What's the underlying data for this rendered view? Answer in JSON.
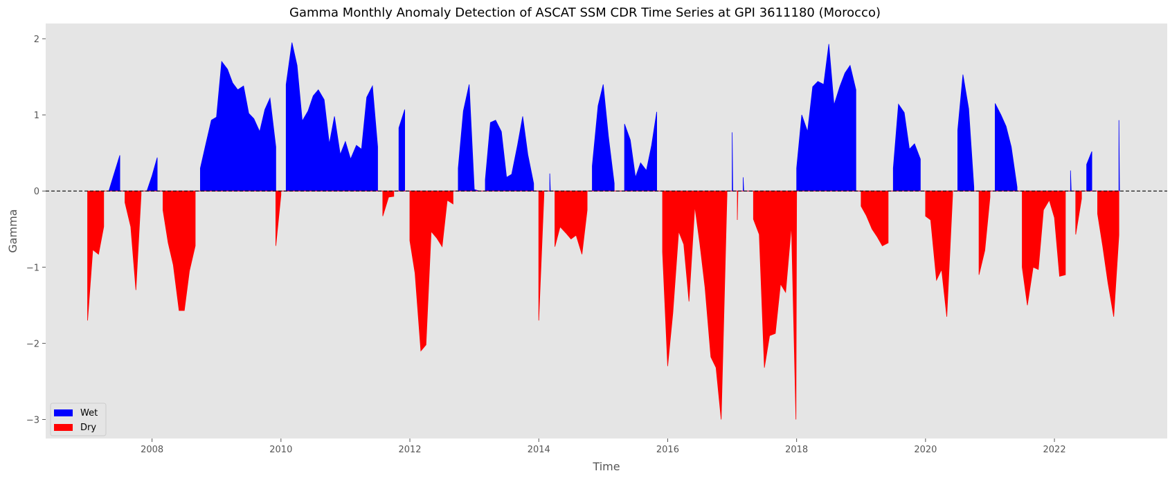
{
  "chart_data": {
    "type": "area",
    "title": "Gamma Monthly Anomaly Detection of ASCAT SSM CDR Time Series at GPI 3611180 (Morocco)",
    "xlabel": "Time",
    "ylabel": "Gamma",
    "xlim": [
      2006.35,
      2023.75
    ],
    "ylim": [
      -3.25,
      2.2
    ],
    "xticks": [
      2008,
      2010,
      2012,
      2014,
      2016,
      2018,
      2020,
      2022
    ],
    "yticks": [
      -3,
      -2,
      -1,
      0,
      1,
      2
    ],
    "grid": false,
    "baseline": 0,
    "baseline_style": "dashed",
    "legend_position": "lower-left",
    "series": [
      {
        "name": "Wet",
        "color": "#0000ff",
        "points": [
          [
            2007.33,
            0
          ],
          [
            2007.42,
            0.25
          ],
          [
            2007.5,
            0.47
          ],
          [
            2007.5,
            0
          ],
          [
            2007.92,
            0
          ],
          [
            2008.0,
            0.2
          ],
          [
            2008.08,
            0.44
          ],
          [
            2008.08,
            0
          ],
          [
            2008.75,
            0
          ],
          [
            2008.75,
            0.3
          ],
          [
            2008.83,
            0.6
          ],
          [
            2008.92,
            0.93
          ],
          [
            2009.0,
            0.97
          ],
          [
            2009.08,
            1.7
          ],
          [
            2009.17,
            1.6
          ],
          [
            2009.25,
            1.42
          ],
          [
            2009.33,
            1.33
          ],
          [
            2009.42,
            1.38
          ],
          [
            2009.5,
            1.02
          ],
          [
            2009.58,
            0.95
          ],
          [
            2009.67,
            0.78
          ],
          [
            2009.75,
            1.07
          ],
          [
            2009.83,
            1.22
          ],
          [
            2009.92,
            0.58
          ],
          [
            2009.92,
            0
          ],
          [
            2010.08,
            0
          ],
          [
            2010.08,
            1.4
          ],
          [
            2010.17,
            1.95
          ],
          [
            2010.25,
            1.65
          ],
          [
            2010.33,
            0.92
          ],
          [
            2010.42,
            1.05
          ],
          [
            2010.5,
            1.25
          ],
          [
            2010.58,
            1.33
          ],
          [
            2010.67,
            1.2
          ],
          [
            2010.75,
            0.62
          ],
          [
            2010.83,
            0.98
          ],
          [
            2010.92,
            0.48
          ],
          [
            2011.0,
            0.65
          ],
          [
            2011.08,
            0.42
          ],
          [
            2011.17,
            0.6
          ],
          [
            2011.25,
            0.55
          ],
          [
            2011.33,
            1.23
          ],
          [
            2011.42,
            1.38
          ],
          [
            2011.5,
            0.58
          ],
          [
            2011.5,
            0
          ],
          [
            2011.83,
            0
          ],
          [
            2011.83,
            0.83
          ],
          [
            2011.92,
            1.07
          ],
          [
            2011.92,
            0
          ],
          [
            2012.75,
            0
          ],
          [
            2012.75,
            0.3
          ],
          [
            2012.83,
            1.05
          ],
          [
            2012.92,
            1.4
          ],
          [
            2013.0,
            0.02
          ],
          [
            2013.08,
            0
          ],
          [
            2013.17,
            0
          ],
          [
            2013.17,
            0.15
          ],
          [
            2013.25,
            0.9
          ],
          [
            2013.33,
            0.93
          ],
          [
            2013.42,
            0.78
          ],
          [
            2013.5,
            0.18
          ],
          [
            2013.58,
            0.22
          ],
          [
            2013.67,
            0.6
          ],
          [
            2013.75,
            0.98
          ],
          [
            2013.83,
            0.48
          ],
          [
            2013.92,
            0.1
          ],
          [
            2013.92,
            0
          ],
          [
            2014.17,
            0
          ],
          [
            2014.17,
            0.23
          ],
          [
            2014.18,
            0
          ],
          [
            2014.83,
            0
          ],
          [
            2014.83,
            0.33
          ],
          [
            2014.92,
            1.12
          ],
          [
            2015.0,
            1.4
          ],
          [
            2015.08,
            0.72
          ],
          [
            2015.17,
            0.1
          ],
          [
            2015.17,
            0
          ],
          [
            2015.33,
            0
          ],
          [
            2015.33,
            0.88
          ],
          [
            2015.42,
            0.67
          ],
          [
            2015.5,
            0.18
          ],
          [
            2015.58,
            0.37
          ],
          [
            2015.67,
            0.27
          ],
          [
            2015.75,
            0.6
          ],
          [
            2015.83,
            1.04
          ],
          [
            2015.83,
            0
          ],
          [
            2017.0,
            0
          ],
          [
            2017.0,
            0.77
          ],
          [
            2017.01,
            0
          ],
          [
            2017.17,
            0
          ],
          [
            2017.17,
            0.18
          ],
          [
            2017.18,
            0
          ],
          [
            2018.0,
            0
          ],
          [
            2018.0,
            0.3
          ],
          [
            2018.08,
            1.0
          ],
          [
            2018.17,
            0.78
          ],
          [
            2018.25,
            1.37
          ],
          [
            2018.33,
            1.44
          ],
          [
            2018.42,
            1.4
          ],
          [
            2018.5,
            1.93
          ],
          [
            2018.58,
            1.13
          ],
          [
            2018.67,
            1.37
          ],
          [
            2018.75,
            1.55
          ],
          [
            2018.83,
            1.65
          ],
          [
            2018.92,
            1.33
          ],
          [
            2018.92,
            0
          ],
          [
            2019.5,
            0
          ],
          [
            2019.5,
            0.3
          ],
          [
            2019.58,
            1.14
          ],
          [
            2019.67,
            1.03
          ],
          [
            2019.75,
            0.55
          ],
          [
            2019.83,
            0.62
          ],
          [
            2019.92,
            0.42
          ],
          [
            2019.92,
            0
          ],
          [
            2020.5,
            0
          ],
          [
            2020.5,
            0.8
          ],
          [
            2020.58,
            1.53
          ],
          [
            2020.67,
            1.08
          ],
          [
            2020.75,
            0.05
          ],
          [
            2020.75,
            0
          ],
          [
            2021.08,
            0
          ],
          [
            2021.08,
            1.15
          ],
          [
            2021.17,
            1.0
          ],
          [
            2021.25,
            0.85
          ],
          [
            2021.33,
            0.58
          ],
          [
            2021.42,
            0.05
          ],
          [
            2021.42,
            0
          ],
          [
            2022.25,
            0
          ],
          [
            2022.25,
            0.27
          ],
          [
            2022.26,
            0
          ],
          [
            2022.5,
            0
          ],
          [
            2022.5,
            0.35
          ],
          [
            2022.58,
            0.52
          ],
          [
            2022.58,
            0
          ],
          [
            2023.0,
            0
          ],
          [
            2023.0,
            0.93
          ],
          [
            2023.01,
            0
          ]
        ]
      },
      {
        "name": "Dry",
        "color": "#ff0000",
        "points": [
          [
            2007.0,
            0
          ],
          [
            2007.0,
            -1.7
          ],
          [
            2007.08,
            -0.77
          ],
          [
            2007.17,
            -0.83
          ],
          [
            2007.25,
            -0.47
          ],
          [
            2007.25,
            0
          ],
          [
            2007.58,
            0
          ],
          [
            2007.58,
            -0.15
          ],
          [
            2007.67,
            -0.47
          ],
          [
            2007.75,
            -1.3
          ],
          [
            2007.83,
            -0.05
          ],
          [
            2007.83,
            0
          ],
          [
            2008.17,
            0
          ],
          [
            2008.17,
            -0.25
          ],
          [
            2008.25,
            -0.68
          ],
          [
            2008.33,
            -0.97
          ],
          [
            2008.42,
            -1.57
          ],
          [
            2008.5,
            -1.57
          ],
          [
            2008.58,
            -1.05
          ],
          [
            2008.67,
            -0.72
          ],
          [
            2008.67,
            0
          ],
          [
            2009.92,
            0
          ],
          [
            2009.92,
            -0.72
          ],
          [
            2010.0,
            -0.05
          ],
          [
            2010.0,
            0
          ],
          [
            2011.58,
            0
          ],
          [
            2011.58,
            -0.33
          ],
          [
            2011.67,
            -0.08
          ],
          [
            2011.75,
            -0.07
          ],
          [
            2011.75,
            0
          ],
          [
            2012.0,
            0
          ],
          [
            2012.0,
            -0.65
          ],
          [
            2012.08,
            -1.08
          ],
          [
            2012.17,
            -2.1
          ],
          [
            2012.25,
            -2.02
          ],
          [
            2012.33,
            -0.53
          ],
          [
            2012.42,
            -0.62
          ],
          [
            2012.5,
            -0.73
          ],
          [
            2012.58,
            -0.12
          ],
          [
            2012.67,
            -0.17
          ],
          [
            2012.67,
            0
          ],
          [
            2014.0,
            0
          ],
          [
            2014.0,
            -1.7
          ],
          [
            2014.08,
            -0.05
          ],
          [
            2014.08,
            0
          ],
          [
            2014.25,
            0
          ],
          [
            2014.25,
            -0.73
          ],
          [
            2014.33,
            -0.47
          ],
          [
            2014.42,
            -0.55
          ],
          [
            2014.5,
            -0.63
          ],
          [
            2014.58,
            -0.58
          ],
          [
            2014.67,
            -0.83
          ],
          [
            2014.75,
            -0.25
          ],
          [
            2014.75,
            0
          ],
          [
            2015.92,
            0
          ],
          [
            2015.92,
            -0.8
          ],
          [
            2016.0,
            -2.3
          ],
          [
            2016.08,
            -1.6
          ],
          [
            2016.17,
            -0.53
          ],
          [
            2016.25,
            -0.7
          ],
          [
            2016.33,
            -1.45
          ],
          [
            2016.42,
            -0.2
          ],
          [
            2016.5,
            -0.7
          ],
          [
            2016.58,
            -1.27
          ],
          [
            2016.67,
            -2.18
          ],
          [
            2016.75,
            -2.32
          ],
          [
            2016.83,
            -3.0
          ],
          [
            2016.92,
            -0.05
          ],
          [
            2016.92,
            0
          ],
          [
            2017.08,
            0
          ],
          [
            2017.08,
            -0.38
          ],
          [
            2017.09,
            0
          ],
          [
            2017.33,
            0
          ],
          [
            2017.33,
            -0.37
          ],
          [
            2017.42,
            -0.57
          ],
          [
            2017.5,
            -2.32
          ],
          [
            2017.58,
            -1.9
          ],
          [
            2017.67,
            -1.87
          ],
          [
            2017.75,
            -1.22
          ],
          [
            2017.83,
            -1.33
          ],
          [
            2017.92,
            -0.45
          ],
          [
            2017.99,
            -3.0
          ],
          [
            2018.0,
            0
          ],
          [
            2019.0,
            0
          ],
          [
            2019.0,
            -0.2
          ],
          [
            2019.08,
            -0.32
          ],
          [
            2019.17,
            -0.5
          ],
          [
            2019.25,
            -0.6
          ],
          [
            2019.33,
            -0.72
          ],
          [
            2019.42,
            -0.68
          ],
          [
            2019.42,
            0
          ],
          [
            2020.0,
            0
          ],
          [
            2020.0,
            -0.33
          ],
          [
            2020.08,
            -0.38
          ],
          [
            2020.17,
            -1.17
          ],
          [
            2020.25,
            -1.03
          ],
          [
            2020.33,
            -1.65
          ],
          [
            2020.42,
            -0.05
          ],
          [
            2020.42,
            0
          ],
          [
            2020.83,
            0
          ],
          [
            2020.83,
            -1.1
          ],
          [
            2020.92,
            -0.78
          ],
          [
            2021.0,
            -0.08
          ],
          [
            2021.0,
            0
          ],
          [
            2021.5,
            0
          ],
          [
            2021.5,
            -1.0
          ],
          [
            2021.58,
            -1.5
          ],
          [
            2021.67,
            -1.0
          ],
          [
            2021.75,
            -1.03
          ],
          [
            2021.83,
            -0.25
          ],
          [
            2021.92,
            -0.12
          ],
          [
            2022.0,
            -0.35
          ],
          [
            2022.08,
            -1.12
          ],
          [
            2022.17,
            -1.1
          ],
          [
            2022.17,
            0
          ],
          [
            2022.33,
            0
          ],
          [
            2022.33,
            -0.57
          ],
          [
            2022.42,
            -0.1
          ],
          [
            2022.42,
            0
          ],
          [
            2022.67,
            0
          ],
          [
            2022.67,
            -0.3
          ],
          [
            2022.75,
            -0.73
          ],
          [
            2022.83,
            -1.2
          ],
          [
            2022.92,
            -1.65
          ],
          [
            2023.0,
            -0.58
          ],
          [
            2023.0,
            0
          ]
        ]
      }
    ]
  }
}
